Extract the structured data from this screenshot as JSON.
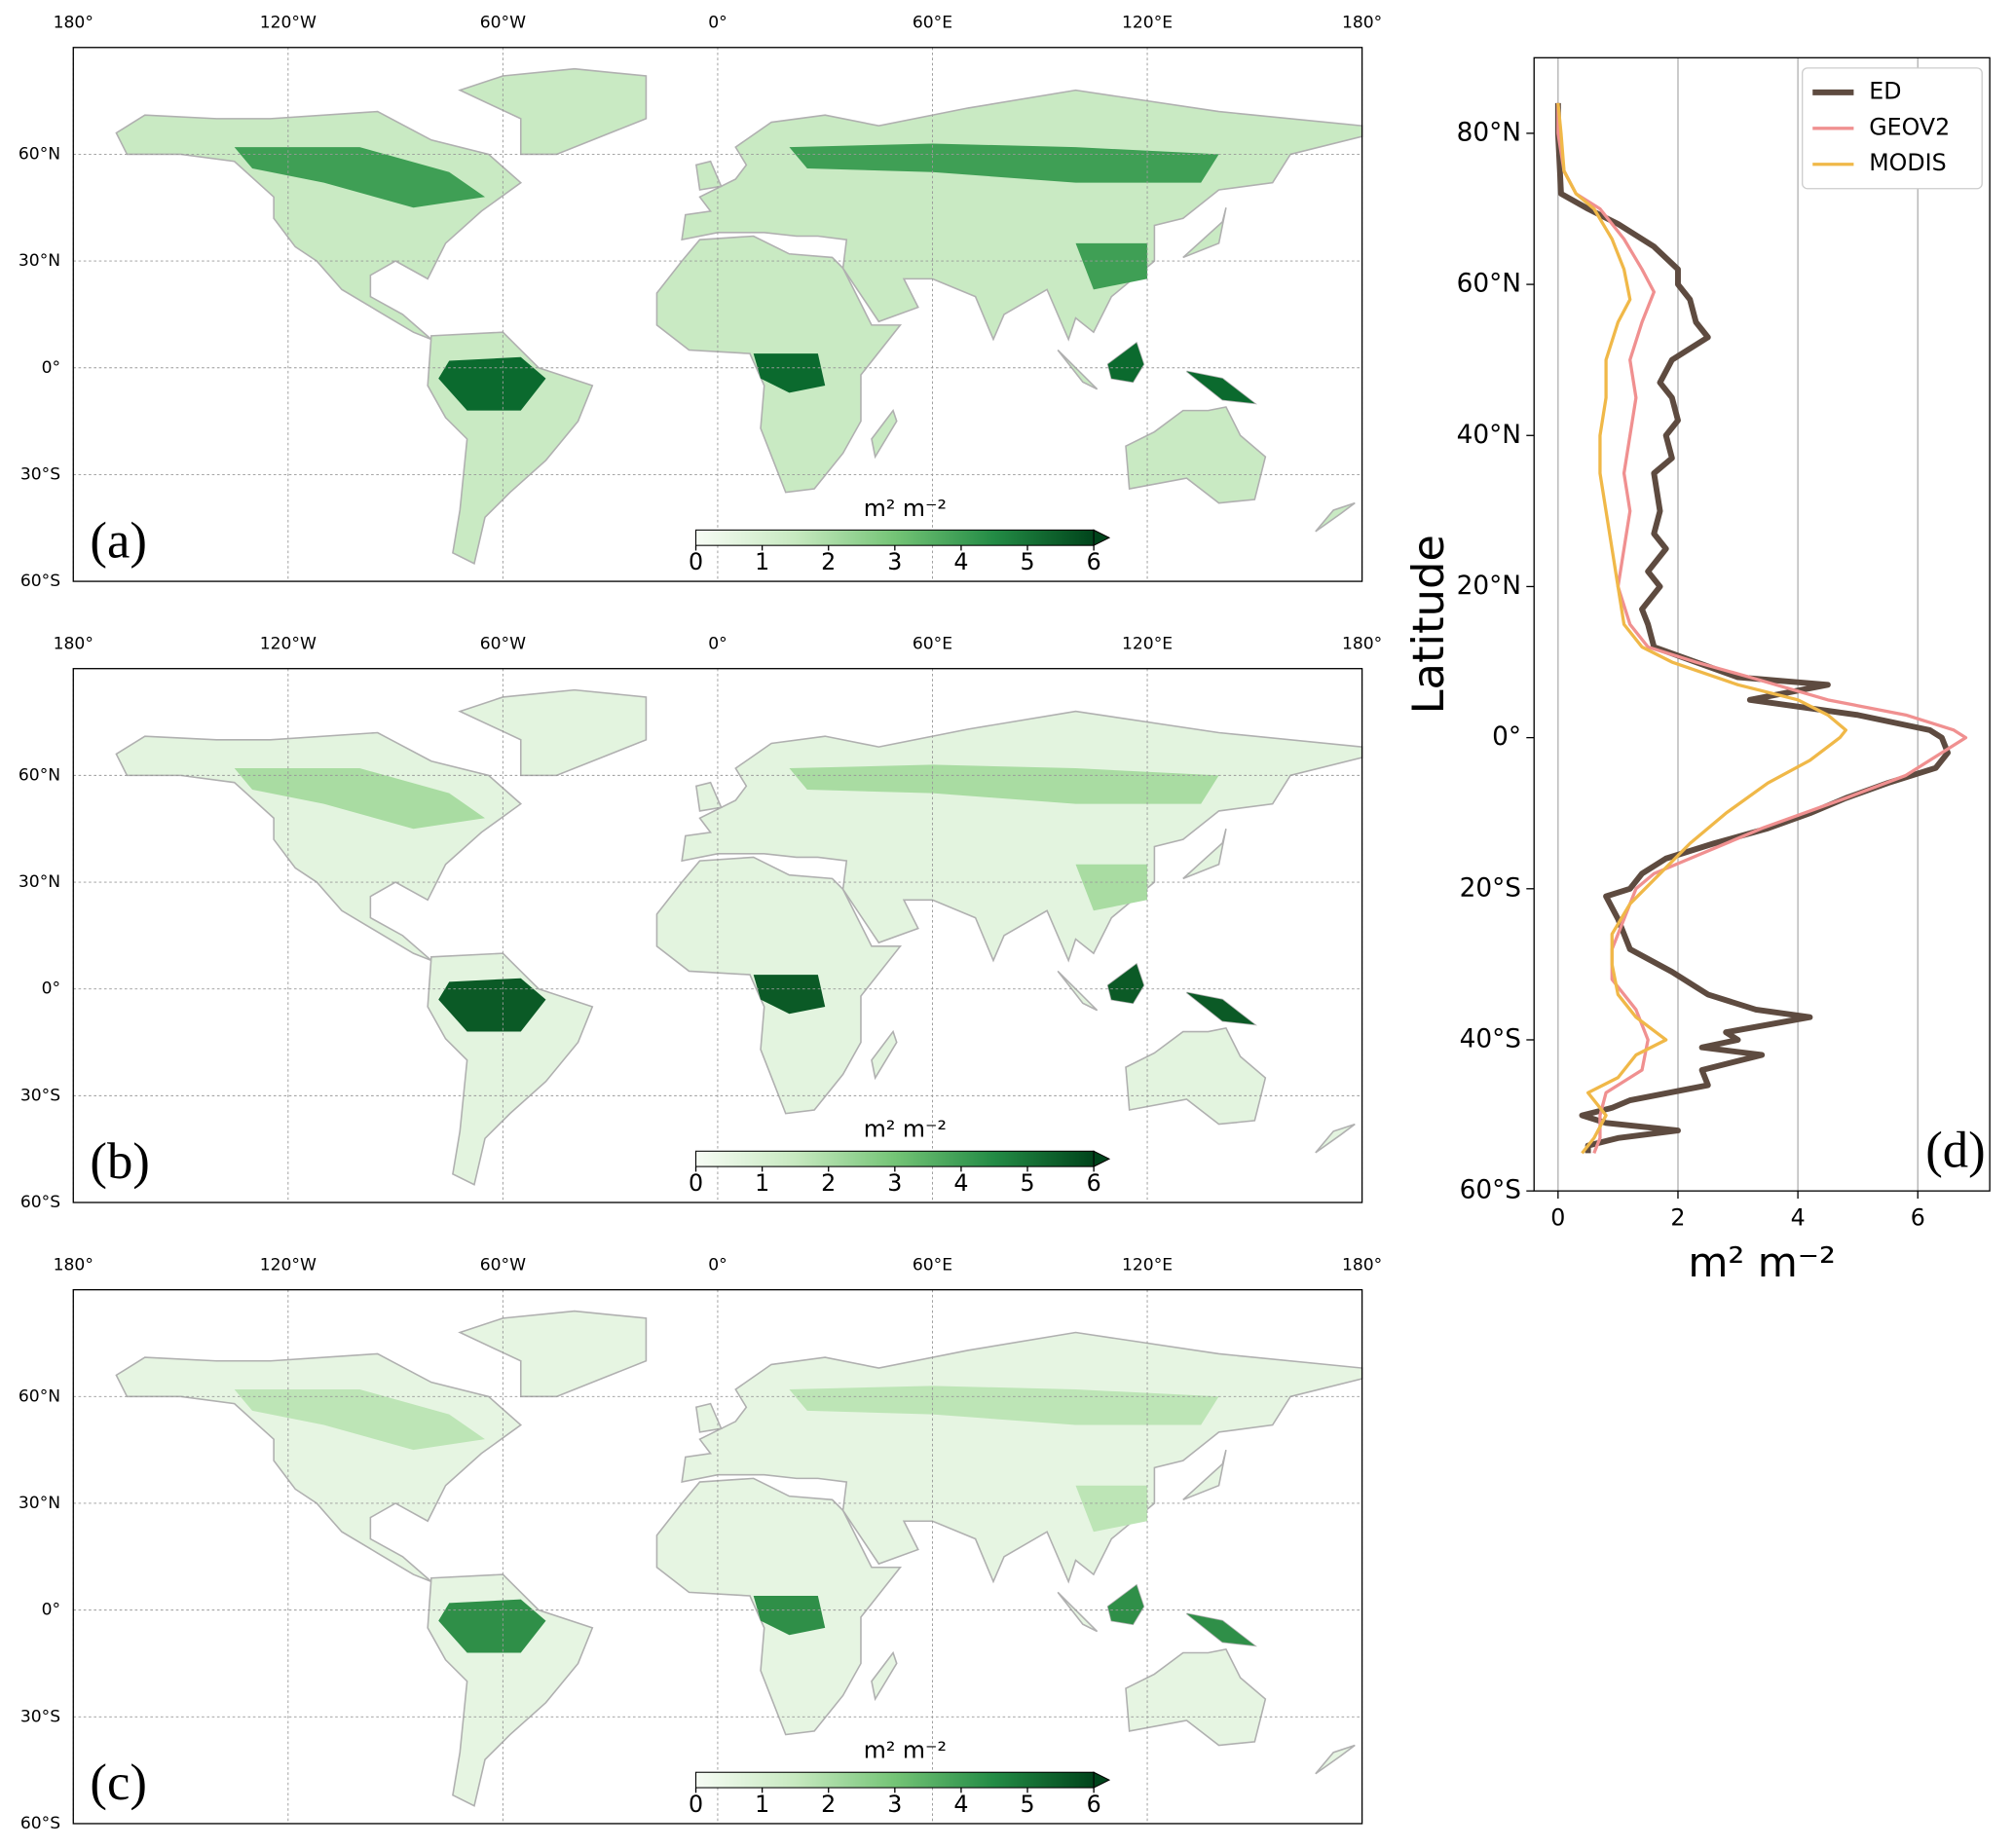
{
  "chart_data": [
    {
      "type": "map",
      "panel_label": "(a)",
      "xlim": [
        -180,
        180
      ],
      "ylim": [
        -60,
        90
      ],
      "xticks": [
        {
          "value": -180,
          "label": "180°"
        },
        {
          "value": -120,
          "label": "120°W"
        },
        {
          "value": -60,
          "label": "60°W"
        },
        {
          "value": 0,
          "label": "0°"
        },
        {
          "value": 60,
          "label": "60°E"
        },
        {
          "value": 120,
          "label": "120°E"
        },
        {
          "value": 180,
          "label": "180°"
        }
      ],
      "yticks": [
        {
          "value": 60,
          "label": "60°N"
        },
        {
          "value": 30,
          "label": "30°N"
        },
        {
          "value": 0,
          "label": "0°"
        },
        {
          "value": -30,
          "label": "30°S"
        },
        {
          "value": -60,
          "label": "60°S"
        }
      ],
      "colorbar": {
        "label": "m² m⁻²",
        "lim": [
          0,
          6
        ],
        "ticks": [
          0,
          1,
          2,
          3,
          4,
          5,
          6
        ]
      }
    },
    {
      "type": "map",
      "panel_label": "(b)",
      "xlim": [
        -180,
        180
      ],
      "ylim": [
        -60,
        90
      ],
      "xticks": [
        {
          "value": -180,
          "label": "180°"
        },
        {
          "value": -120,
          "label": "120°W"
        },
        {
          "value": -60,
          "label": "60°W"
        },
        {
          "value": 0,
          "label": "0°"
        },
        {
          "value": 60,
          "label": "60°E"
        },
        {
          "value": 120,
          "label": "120°E"
        },
        {
          "value": 180,
          "label": "180°"
        }
      ],
      "yticks": [
        {
          "value": 60,
          "label": "60°N"
        },
        {
          "value": 30,
          "label": "30°N"
        },
        {
          "value": 0,
          "label": "0°"
        },
        {
          "value": -30,
          "label": "30°S"
        },
        {
          "value": -60,
          "label": "60°S"
        }
      ],
      "colorbar": {
        "label": "m² m⁻²",
        "lim": [
          0,
          6
        ],
        "ticks": [
          0,
          1,
          2,
          3,
          4,
          5,
          6
        ]
      }
    },
    {
      "type": "map",
      "panel_label": "(c)",
      "xlim": [
        -180,
        180
      ],
      "ylim": [
        -60,
        90
      ],
      "xticks": [
        {
          "value": -180,
          "label": "180°"
        },
        {
          "value": -120,
          "label": "120°W"
        },
        {
          "value": -60,
          "label": "60°W"
        },
        {
          "value": 0,
          "label": "0°"
        },
        {
          "value": 60,
          "label": "60°E"
        },
        {
          "value": 120,
          "label": "120°E"
        },
        {
          "value": 180,
          "label": "180°"
        }
      ],
      "yticks": [
        {
          "value": 60,
          "label": "60°N"
        },
        {
          "value": 30,
          "label": "30°N"
        },
        {
          "value": 0,
          "label": "0°"
        },
        {
          "value": -30,
          "label": "30°S"
        },
        {
          "value": -60,
          "label": "60°S"
        }
      ],
      "colorbar": {
        "label": "m² m⁻²",
        "lim": [
          0,
          6
        ],
        "ticks": [
          0,
          1,
          2,
          3,
          4,
          5,
          6
        ]
      }
    },
    {
      "type": "line",
      "panel_label": "(d)",
      "x_label": "m² m⁻²",
      "y_label": "Latitude",
      "xlim": [
        -0.4,
        7.2
      ],
      "xticks": [
        0,
        2,
        4,
        6
      ],
      "ylim": [
        -60,
        90
      ],
      "yticks": [
        {
          "value": 80,
          "label": "80°N"
        },
        {
          "value": 60,
          "label": "60°N"
        },
        {
          "value": 40,
          "label": "40°N"
        },
        {
          "value": 20,
          "label": "20°N"
        },
        {
          "value": 0,
          "label": "0°"
        },
        {
          "value": -20,
          "label": "20°S"
        },
        {
          "value": -40,
          "label": "40°S"
        },
        {
          "value": -60,
          "label": "60°S"
        }
      ],
      "grid": "x",
      "legend": "upper right",
      "series": [
        {
          "name": "ED",
          "color": "#5e4b40",
          "y": [
            84,
            80,
            72,
            70,
            68,
            65,
            62,
            60,
            58,
            55,
            53,
            50,
            47,
            45,
            42,
            40,
            37,
            35,
            30,
            27,
            25,
            22,
            20,
            17,
            15,
            12,
            10,
            8,
            7,
            5,
            3,
            1,
            0,
            -2,
            -4,
            -6,
            -8,
            -10,
            -12,
            -14,
            -16,
            -18,
            -20,
            -21,
            -24,
            -28,
            -31,
            -34,
            -36,
            -37,
            -39,
            -40,
            -41,
            -42,
            -44,
            -46,
            -48,
            -49,
            -50,
            -51,
            -52,
            -53,
            -54,
            -55
          ],
          "values": [
            0,
            0,
            0.05,
            0.5,
            1.0,
            1.6,
            2.0,
            2.0,
            2.2,
            2.3,
            2.5,
            1.9,
            1.7,
            1.9,
            2.0,
            1.8,
            1.9,
            1.6,
            1.7,
            1.6,
            1.8,
            1.5,
            1.7,
            1.4,
            1.5,
            1.6,
            2.3,
            3.0,
            4.5,
            3.2,
            5.0,
            6.2,
            6.4,
            6.5,
            6.3,
            5.5,
            4.8,
            4.2,
            3.5,
            2.6,
            1.8,
            1.4,
            1.2,
            0.8,
            1.0,
            1.2,
            1.9,
            2.5,
            3.3,
            4.2,
            2.8,
            3.0,
            2.4,
            3.4,
            2.4,
            2.5,
            1.2,
            0.9,
            0.4,
            0.8,
            2.0,
            1.0,
            0.5,
            0.5
          ]
        },
        {
          "name": "GEOV2",
          "color": "#f09090",
          "y": [
            84,
            80,
            75,
            72,
            70,
            66,
            62,
            59,
            55,
            50,
            45,
            40,
            35,
            30,
            25,
            20,
            15,
            12,
            10,
            8,
            5,
            3,
            1,
            0,
            -2,
            -5,
            -8,
            -12,
            -16,
            -18,
            -20,
            -24,
            -28,
            -32,
            -36,
            -40,
            -44,
            -47,
            -50,
            -53,
            -55
          ],
          "values": [
            0,
            0,
            0.1,
            0.3,
            0.7,
            1.1,
            1.4,
            1.6,
            1.4,
            1.2,
            1.3,
            1.2,
            1.1,
            1.2,
            1.1,
            1.0,
            1.2,
            1.5,
            2.3,
            3.2,
            4.5,
            5.8,
            6.6,
            6.8,
            6.4,
            5.8,
            4.8,
            3.4,
            2.2,
            1.6,
            1.3,
            1.1,
            0.9,
            0.9,
            1.3,
            1.5,
            1.4,
            0.8,
            0.7,
            0.7,
            0.6
          ]
        },
        {
          "name": "MODIS",
          "color": "#f0b848",
          "y": [
            84,
            80,
            75,
            72,
            70,
            66,
            62,
            58,
            55,
            50,
            45,
            40,
            35,
            30,
            25,
            20,
            15,
            12,
            10,
            7,
            5,
            3,
            1,
            0,
            -3,
            -6,
            -10,
            -14,
            -18,
            -22,
            -26,
            -30,
            -34,
            -37,
            -40,
            -42,
            -45,
            -47,
            -50,
            -53,
            -55
          ],
          "values": [
            0,
            0.05,
            0.1,
            0.3,
            0.6,
            0.9,
            1.1,
            1.2,
            1.0,
            0.8,
            0.8,
            0.7,
            0.7,
            0.8,
            0.9,
            1.0,
            1.1,
            1.4,
            1.9,
            3.0,
            4.0,
            4.5,
            4.8,
            4.7,
            4.2,
            3.5,
            2.8,
            2.2,
            1.7,
            1.2,
            0.9,
            0.9,
            1.0,
            1.3,
            1.8,
            1.3,
            1.0,
            0.5,
            0.8,
            0.6,
            0.4
          ]
        }
      ]
    }
  ]
}
